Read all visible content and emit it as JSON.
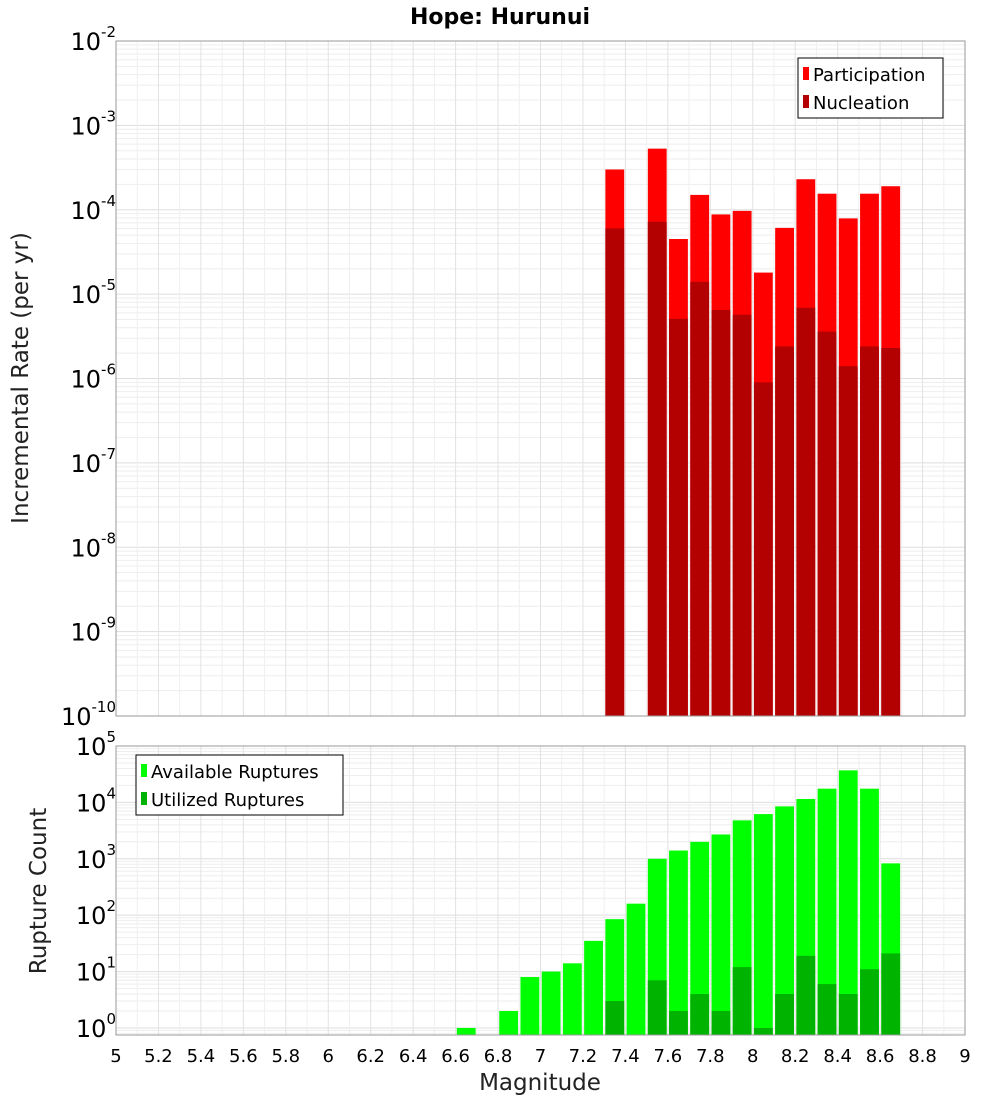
{
  "chart_data": {
    "type": "bar",
    "title": "Hope: Hurunui",
    "xlabel": "Magnitude",
    "xlim": [
      5,
      9
    ],
    "xticks": [
      "5",
      "5.2",
      "5.4",
      "5.6",
      "5.8",
      "6",
      "6.2",
      "6.4",
      "6.6",
      "6.8",
      "7",
      "7.2",
      "7.4",
      "7.6",
      "7.8",
      "8",
      "8.2",
      "8.4",
      "8.6",
      "8.8",
      "9"
    ],
    "bin_width": 0.1,
    "panels": [
      {
        "id": "rate",
        "ylabel": "Incremental Rate (per yr)",
        "yscale": "log",
        "ylim": [
          1e-10,
          0.01
        ],
        "yticks": [
          {
            "base": "10",
            "exp": "-10",
            "value": 1e-10
          },
          {
            "base": "10",
            "exp": "-9",
            "value": 1e-09
          },
          {
            "base": "10",
            "exp": "-8",
            "value": 1e-08
          },
          {
            "base": "10",
            "exp": "-7",
            "value": 1e-07
          },
          {
            "base": "10",
            "exp": "-6",
            "value": 1e-06
          },
          {
            "base": "10",
            "exp": "-5",
            "value": 1e-05
          },
          {
            "base": "10",
            "exp": "-4",
            "value": 0.0001
          },
          {
            "base": "10",
            "exp": "-3",
            "value": 0.001
          },
          {
            "base": "10",
            "exp": "-2",
            "value": 0.01
          }
        ],
        "legend_position": "top-right",
        "series": [
          {
            "name": "Participation",
            "color": "#ff0000",
            "x": [
              7.35,
              7.55,
              7.65,
              7.75,
              7.85,
              7.95,
              8.05,
              8.15,
              8.25,
              8.35,
              8.45,
              8.55,
              8.65
            ],
            "values": [
              0.0003,
              0.00053,
              4.5e-05,
              0.00015,
              8.8e-05,
              9.7e-05,
              1.8e-05,
              6.1e-05,
              0.00023,
              0.000155,
              7.9e-05,
              0.000155,
              0.00019
            ]
          },
          {
            "name": "Nucleation",
            "color": "#b30000",
            "x": [
              7.35,
              7.55,
              7.65,
              7.75,
              7.85,
              7.95,
              8.05,
              8.15,
              8.25,
              8.35,
              8.45,
              8.55,
              8.65
            ],
            "values": [
              6e-05,
              7.2e-05,
              5.1e-06,
              1.4e-05,
              6.5e-06,
              5.7e-06,
              9e-07,
              2.4e-06,
              6.9e-06,
              3.6e-06,
              1.4e-06,
              2.4e-06,
              2.3e-06
            ]
          }
        ]
      },
      {
        "id": "count",
        "ylabel": "Rupture Count",
        "yscale": "log",
        "ylim": [
          0.75,
          100000.0
        ],
        "yticks": [
          {
            "base": "10",
            "exp": "0",
            "value": 1
          },
          {
            "base": "10",
            "exp": "1",
            "value": 10
          },
          {
            "base": "10",
            "exp": "2",
            "value": 100
          },
          {
            "base": "10",
            "exp": "3",
            "value": 1000
          },
          {
            "base": "10",
            "exp": "4",
            "value": 10000
          },
          {
            "base": "10",
            "exp": "5",
            "value": 100000
          }
        ],
        "legend_position": "top-left",
        "series": [
          {
            "name": "Available Ruptures",
            "color": "#00ff00",
            "x": [
              6.65,
              6.85,
              6.95,
              7.05,
              7.15,
              7.25,
              7.35,
              7.45,
              7.55,
              7.65,
              7.75,
              7.85,
              7.95,
              8.05,
              8.15,
              8.25,
              8.35,
              8.45,
              8.55,
              8.65
            ],
            "values": [
              1,
              2,
              8,
              10,
              14,
              35,
              85,
              160,
              1000,
              1400,
              2000,
              2700,
              4800,
              6200,
              8500,
              11500,
              17500,
              37000,
              17500,
              830
            ]
          },
          {
            "name": "Utilized Ruptures",
            "color": "#00b300",
            "x": [
              7.35,
              7.55,
              7.65,
              7.75,
              7.85,
              7.95,
              8.05,
              8.15,
              8.25,
              8.35,
              8.45,
              8.55,
              8.65
            ],
            "values": [
              3,
              7,
              2,
              4,
              2,
              12,
              1,
              4,
              19,
              6,
              4,
              11,
              21
            ]
          }
        ]
      }
    ],
    "grid": true
  }
}
